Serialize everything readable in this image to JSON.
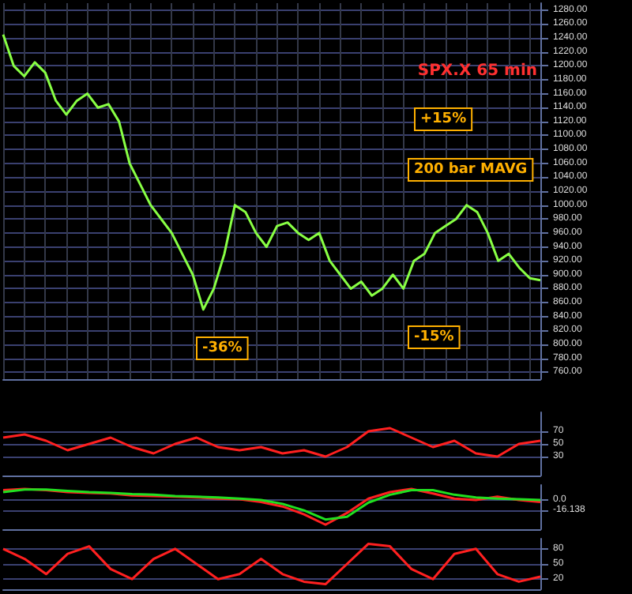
{
  "chart_data": [
    {
      "type": "line",
      "title": "SPX.X 65 min",
      "annotations": [
        "+15%",
        "200 bar MAVG",
        "-15%",
        "-36%"
      ],
      "categories": [
        null,
        null,
        null,
        null,
        null,
        null,
        null,
        null,
        null,
        null,
        null,
        null,
        null,
        null,
        null,
        null,
        null,
        null,
        null,
        null,
        null,
        null,
        null,
        null,
        null,
        null,
        null,
        null,
        null,
        null,
        null,
        null,
        null,
        null,
        null,
        null,
        null,
        null,
        null,
        null,
        null,
        null,
        null,
        null,
        null,
        null,
        null,
        null,
        null,
        null,
        null,
        null
      ],
      "series": [
        {
          "color": "#88ff44",
          "values": [
            1245,
            1200,
            1185,
            1205,
            1190,
            1150,
            1130,
            1150,
            1160,
            1140,
            1145,
            1120,
            1060,
            1030,
            1000,
            980,
            960,
            930,
            900,
            850,
            880,
            930,
            1000,
            990,
            960,
            940,
            970,
            975,
            960,
            950,
            960,
            920,
            900,
            880,
            890,
            870,
            880,
            900,
            880,
            920,
            930,
            960,
            970,
            980,
            1000,
            990,
            960,
            920,
            930,
            910,
            895,
            892
          ]
        }
      ],
      "ylim": [
        750,
        1290
      ],
      "yticks": [
        {
          "value": 760,
          "label": "760.00"
        },
        {
          "value": 780,
          "label": "780.00"
        },
        {
          "value": 800,
          "label": "800.00"
        },
        {
          "value": 820,
          "label": "820.00"
        },
        {
          "value": 840,
          "label": "840.00"
        },
        {
          "value": 860,
          "label": "860.00"
        },
        {
          "value": 880,
          "label": "880.00"
        },
        {
          "value": 900,
          "label": "900.00"
        },
        {
          "value": 920,
          "label": "920.00"
        },
        {
          "value": 940,
          "label": "940.00"
        },
        {
          "value": 960,
          "label": "960.00"
        },
        {
          "value": 980,
          "label": "980.00"
        },
        {
          "value": 1000,
          "label": "1000.00"
        },
        {
          "value": 1020,
          "label": "1020.00"
        },
        {
          "value": 1040,
          "label": "1040.00"
        },
        {
          "value": 1060,
          "label": "1060.00"
        },
        {
          "value": 1080,
          "label": "1080.00"
        },
        {
          "value": 1100,
          "label": "1100.00"
        },
        {
          "value": 1120,
          "label": "1120.00"
        },
        {
          "value": 1140,
          "label": "1140.00"
        },
        {
          "value": 1160,
          "label": "1160.00"
        },
        {
          "value": 1180,
          "label": "1180.00"
        },
        {
          "value": 1200,
          "label": "1200.00"
        },
        {
          "value": 1220,
          "label": "1220.00"
        },
        {
          "value": 1240,
          "label": "1240.00"
        },
        {
          "value": 1260,
          "label": "1260.00"
        },
        {
          "value": 1280,
          "label": "1280.00"
        }
      ],
      "grid": true,
      "tick_labels": "y"
    },
    {
      "type": "line",
      "categories": [
        null,
        null,
        null,
        null,
        null,
        null,
        null,
        null,
        null,
        null,
        null,
        null,
        null,
        null,
        null,
        null,
        null,
        null,
        null,
        null,
        null,
        null,
        null,
        null,
        null,
        null
      ],
      "series": [
        {
          "color": "#ff2020",
          "values": [
            60,
            65,
            55,
            40,
            50,
            60,
            45,
            35,
            50,
            60,
            45,
            40,
            45,
            35,
            40,
            30,
            45,
            70,
            75,
            60,
            45,
            55,
            35,
            30,
            50,
            55
          ]
        }
      ],
      "ylim": [
        0,
        100
      ],
      "yticks": [
        30,
        50,
        70
      ],
      "grid": "y",
      "tick_labels": "y"
    },
    {
      "type": "line",
      "ylim": [
        -45,
        23
      ],
      "yticks": [
        {
          "value": 0,
          "label": "0.0"
        },
        {
          "value": -16.138,
          "label": "-16.138"
        }
      ],
      "tick_labels": "y",
      "categories": [
        null,
        null,
        null,
        null,
        null,
        null,
        null,
        null,
        null,
        null,
        null,
        null,
        null,
        null,
        null,
        null,
        null,
        null,
        null,
        null,
        null,
        null,
        null,
        null,
        null,
        null
      ],
      "series": [
        {
          "color": "#ff2020",
          "values": [
            15,
            17,
            15,
            12,
            11,
            10,
            7,
            6,
            5,
            4,
            2,
            1,
            -3,
            -10,
            -22,
            -38,
            -20,
            2,
            12,
            17,
            10,
            2,
            0,
            5,
            0,
            -3
          ]
        },
        {
          "color": "#20e020",
          "values": [
            12,
            16,
            16,
            14,
            12,
            11,
            9,
            8,
            6,
            5,
            4,
            2,
            0,
            -6,
            -16,
            -30,
            -26,
            -4,
            8,
            15,
            15,
            8,
            4,
            2,
            1,
            0
          ]
        }
      ],
      "grid": "y"
    },
    {
      "type": "line",
      "categories": [
        null,
        null,
        null,
        null,
        null,
        null,
        null,
        null,
        null,
        null,
        null,
        null,
        null,
        null,
        null,
        null,
        null,
        null,
        null,
        null,
        null,
        null,
        null,
        null,
        null,
        null
      ],
      "series": [
        {
          "color": "#ff2020",
          "values": [
            80,
            60,
            30,
            70,
            85,
            40,
            20,
            60,
            80,
            50,
            20,
            30,
            60,
            30,
            15,
            10,
            50,
            90,
            85,
            40,
            20,
            70,
            80,
            30,
            15,
            25
          ]
        }
      ],
      "ylim": [
        0,
        100
      ],
      "yticks": [
        20,
        50,
        80
      ],
      "grid": "y",
      "tick_labels": "y"
    }
  ]
}
